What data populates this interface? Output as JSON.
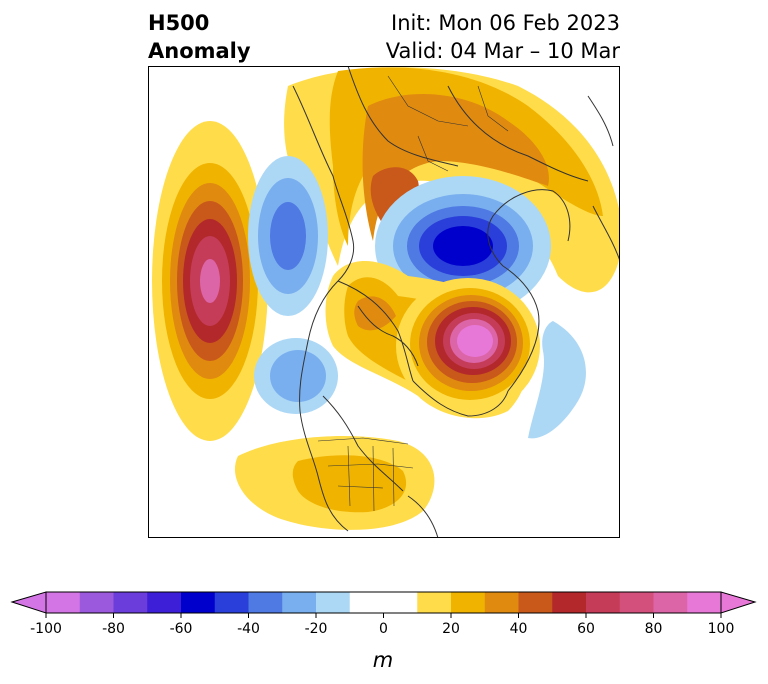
{
  "header": {
    "title_line1": "H500",
    "title_line2": "Anomaly",
    "init_text": "Init: Mon 06 Feb 2023",
    "valid_text": "Valid: 04 Mar – 10 Mar"
  },
  "colorbar": {
    "unit": "m",
    "tick_labels": [
      "-100",
      "-80",
      "-60",
      "-40",
      "-20",
      "0",
      "20",
      "40",
      "60",
      "80",
      "100"
    ],
    "levels": [
      -100,
      -90,
      -80,
      -70,
      -60,
      -50,
      -40,
      -30,
      -20,
      -10,
      10,
      20,
      30,
      40,
      50,
      60,
      70,
      80,
      90,
      100
    ],
    "colors": [
      "#d475e6",
      "#9b59dd",
      "#6b3ddb",
      "#3c1fd6",
      "#0000cd",
      "#2a3fd9",
      "#4f79e3",
      "#79afee",
      "#acd8f6",
      "#ffffff",
      "#ffdc4a",
      "#f0b400",
      "#e08a10",
      "#c9581b",
      "#b3282a",
      "#c43c58",
      "#d4507c",
      "#dc65a8",
      "#e878d8"
    ],
    "under_color": "#d475e6",
    "over_color": "#e878d8"
  },
  "map": {
    "projection": "north-polar-stereographic",
    "features": [
      "coastlines",
      "country-borders",
      "state-borders"
    ]
  }
}
